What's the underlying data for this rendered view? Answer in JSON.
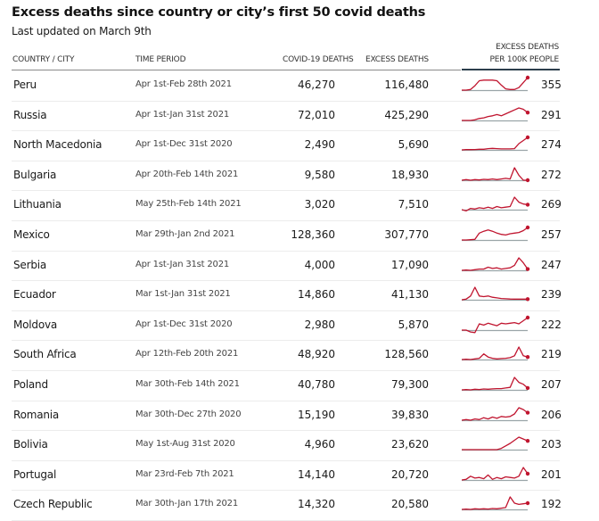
{
  "header": {
    "title": "Excess deaths since country or city’s first 50 covid deaths",
    "subtitle": "Last updated on March 9th"
  },
  "columns": {
    "country": "COUNTRY / CITY",
    "period": "TIME PERIOD",
    "covid": "COVID-19 DEATHS",
    "excess": "EXCESS DEATHS",
    "per100k_line1": "EXCESS DEATHS",
    "per100k_line2": "PER 100K PEOPLE"
  },
  "colors": {
    "sparkline": "#c0152f",
    "baseline": "#9aa5a8",
    "header_rule": "#2c3e4c"
  },
  "chart_data": {
    "type": "table",
    "title": "Excess deaths since country or city’s first 50 covid deaths",
    "subtitle": "Last updated on March 9th",
    "columns": [
      "Country / City",
      "Time period",
      "Covid-19 deaths",
      "Excess deaths",
      "Excess deaths per 100k people"
    ],
    "rows": [
      {
        "country": "Peru",
        "period": "Apr 1st-Feb 28th 2021",
        "covid": "46,270",
        "excess": "116,480",
        "per100k": "355",
        "trend": [
          0,
          0,
          0.05,
          0.35,
          0.75,
          0.8,
          0.8,
          0.8,
          0.75,
          0.4,
          0.1,
          0.05,
          0.05,
          0.2,
          0.6,
          1.0
        ]
      },
      {
        "country": "Russia",
        "period": "Apr 1st-Jan 31st 2021",
        "covid": "72,010",
        "excess": "425,290",
        "per100k": "291",
        "trend": [
          0,
          0,
          0,
          0.05,
          0.15,
          0.2,
          0.3,
          0.35,
          0.45,
          0.35,
          0.5,
          0.65,
          0.8,
          0.95,
          0.85,
          0.6
        ]
      },
      {
        "country": "North Macedonia",
        "period": "Apr 1st-Dec 31st 2020",
        "covid": "2,490",
        "excess": "5,690",
        "per100k": "274",
        "trend": [
          0,
          0.02,
          0.02,
          0.03,
          0.05,
          0.05,
          0.1,
          0.12,
          0.1,
          0.08,
          0.08,
          0.08,
          0.1,
          0.5,
          0.75,
          1.0
        ]
      },
      {
        "country": "Bulgaria",
        "period": "Apr 20th-Feb 14th 2021",
        "covid": "9,580",
        "excess": "18,930",
        "per100k": "272",
        "trend": [
          0,
          0.05,
          0,
          0.05,
          0.02,
          0.07,
          0.05,
          0.1,
          0.05,
          0.1,
          0.15,
          0.1,
          1.0,
          0.4,
          0,
          0
        ]
      },
      {
        "country": "Lithuania",
        "period": "May 25th-Feb 14th 2021",
        "covid": "3,020",
        "excess": "7,510",
        "per100k": "269",
        "trend": [
          0,
          -0.1,
          0.1,
          0.05,
          0.15,
          0.1,
          0.2,
          0.1,
          0.25,
          0.15,
          0.2,
          0.25,
          1.0,
          0.6,
          0.45,
          0.4
        ]
      },
      {
        "country": "Mexico",
        "period": "Mar 29th-Jan 2nd 2021",
        "covid": "128,360",
        "excess": "307,770",
        "per100k": "257",
        "trend": [
          0,
          0,
          0.02,
          0.05,
          0.55,
          0.7,
          0.8,
          0.7,
          0.55,
          0.45,
          0.4,
          0.5,
          0.55,
          0.6,
          0.75,
          1.0
        ]
      },
      {
        "country": "Serbia",
        "period": "Apr 1st-Jan 31st 2021",
        "covid": "4,000",
        "excess": "17,090",
        "per100k": "247",
        "trend": [
          0,
          0.02,
          0,
          0.05,
          0.1,
          0.1,
          0.25,
          0.15,
          0.2,
          0.1,
          0.15,
          0.2,
          0.4,
          1.0,
          0.6,
          0.1
        ]
      },
      {
        "country": "Ecuador",
        "period": "Mar 1st-Jan 31st 2021",
        "covid": "14,860",
        "excess": "41,130",
        "per100k": "239",
        "trend": [
          0,
          0.05,
          0.3,
          1.0,
          0.3,
          0.25,
          0.3,
          0.2,
          0.15,
          0.1,
          0.08,
          0.06,
          0.05,
          0.05,
          0.05,
          0.05
        ]
      },
      {
        "country": "Moldova",
        "period": "Apr 1st-Dec 31st 2020",
        "covid": "2,980",
        "excess": "5,870",
        "per100k": "222",
        "trend": [
          0,
          0,
          -0.15,
          -0.2,
          0.5,
          0.4,
          0.55,
          0.45,
          0.35,
          0.55,
          0.5,
          0.55,
          0.6,
          0.5,
          0.75,
          1.0
        ]
      },
      {
        "country": "South Africa",
        "period": "Apr 12th-Feb 20th 2021",
        "covid": "48,920",
        "excess": "128,560",
        "per100k": "219",
        "trend": [
          0,
          0.02,
          0,
          0.05,
          0.1,
          0.45,
          0.2,
          0.1,
          0.05,
          0.08,
          0.1,
          0.15,
          0.3,
          1.0,
          0.3,
          0.2
        ]
      },
      {
        "country": "Poland",
        "period": "Mar 30th-Feb 14th 2021",
        "covid": "40,780",
        "excess": "79,300",
        "per100k": "207",
        "trend": [
          0,
          0.02,
          0,
          0.05,
          0.03,
          0.07,
          0.05,
          0.08,
          0.1,
          0.1,
          0.15,
          0.2,
          1.0,
          0.6,
          0.45,
          0.15
        ]
      },
      {
        "country": "Romania",
        "period": "Mar 30th-Dec 27th 2020",
        "covid": "15,190",
        "excess": "39,830",
        "per100k": "206",
        "trend": [
          0,
          0.05,
          0,
          0.1,
          0.05,
          0.2,
          0.1,
          0.25,
          0.15,
          0.3,
          0.25,
          0.3,
          0.5,
          1.0,
          0.85,
          0.6
        ]
      },
      {
        "country": "Bolivia",
        "period": "May 1st-Aug 31st 2020",
        "covid": "4,960",
        "excess": "23,620",
        "per100k": "203",
        "trend": [
          0,
          0,
          0,
          0,
          0,
          0,
          0,
          0,
          0,
          0.1,
          0.3,
          0.5,
          0.75,
          1.0,
          0.85,
          0.7
        ]
      },
      {
        "country": "Portugal",
        "period": "Mar 23rd-Feb 7th 2021",
        "covid": "14,140",
        "excess": "20,720",
        "per100k": "201",
        "trend": [
          0,
          0.05,
          0.3,
          0.15,
          0.2,
          0.1,
          0.4,
          0.05,
          0.2,
          0.1,
          0.25,
          0.2,
          0.15,
          0.3,
          1.0,
          0.5
        ]
      },
      {
        "country": "Czech Republic",
        "period": "Mar 30th-Jan 17th 2021",
        "covid": "14,320",
        "excess": "20,580",
        "per100k": "192",
        "trend": [
          0,
          0.02,
          0,
          0.05,
          0.03,
          0.05,
          0.03,
          0.07,
          0.05,
          0.1,
          0.15,
          1.0,
          0.5,
          0.4,
          0.45,
          0.5
        ]
      }
    ]
  }
}
